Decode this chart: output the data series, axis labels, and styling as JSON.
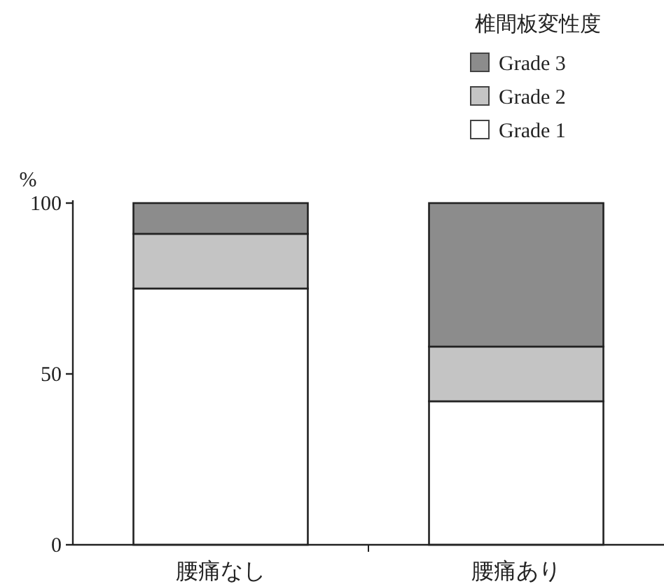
{
  "chart_data": {
    "type": "bar",
    "stacked": true,
    "ylabel": "%",
    "legend_title": "椎間板変性度",
    "legend": "top right",
    "categories": [
      "腰痛なし",
      "腰痛あり"
    ],
    "ylim": [
      0,
      100
    ],
    "yticks": [
      0,
      50,
      100
    ],
    "series": [
      {
        "name": "Grade 1",
        "color": "#ffffff",
        "values": [
          75,
          42
        ]
      },
      {
        "name": "Grade 2",
        "color": "#c4c4c4",
        "values": [
          16,
          16
        ]
      },
      {
        "name": "Grade 3",
        "color": "#8c8c8c",
        "values": [
          9,
          42
        ]
      }
    ]
  }
}
